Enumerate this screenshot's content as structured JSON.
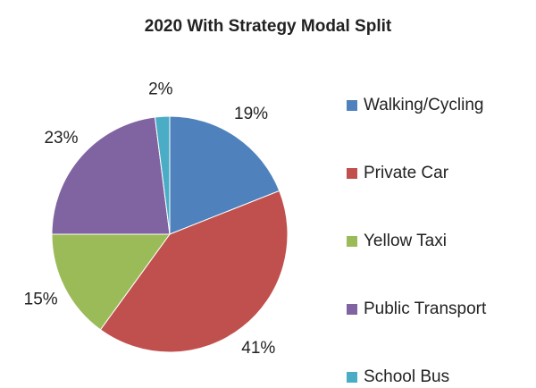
{
  "chart_data": {
    "type": "pie",
    "title": "2020 With Strategy Modal Split",
    "categories": [
      "Walking/Cycling",
      "Private Car",
      "Yellow Taxi",
      "Public Transport",
      "School Bus"
    ],
    "values": [
      19,
      41,
      15,
      23,
      2
    ],
    "value_labels": [
      "19%",
      "41%",
      "15%",
      "23%",
      "2%"
    ],
    "colors": [
      "#4f81bd",
      "#c0504d",
      "#9bbb59",
      "#8064a2",
      "#4bacc6"
    ],
    "legend": "right"
  }
}
